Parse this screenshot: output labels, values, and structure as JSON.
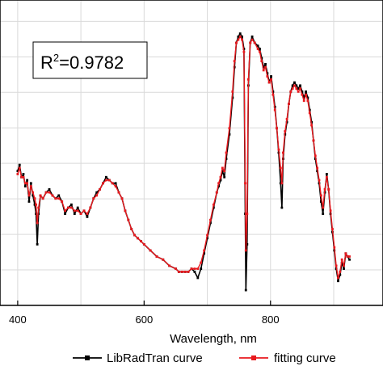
{
  "chart_data": {
    "type": "line",
    "title": "",
    "xlabel": "Wavelength, nm",
    "ylabel": "",
    "xlim": [
      372,
      978
    ],
    "ylim": [
      0,
      1
    ],
    "x_ticks": [
      400,
      600,
      800
    ],
    "grid": true,
    "legend_position": "bottom",
    "annotation": {
      "base": "R",
      "superscript": "2",
      "rest": "=0.9782"
    },
    "series": [
      {
        "name": "LibRadTran curve",
        "color": "#000000",
        "points": [
          [
            400,
            0.44
          ],
          [
            403,
            0.46
          ],
          [
            406,
            0.42
          ],
          [
            409,
            0.43
          ],
          [
            412,
            0.39
          ],
          [
            415,
            0.41
          ],
          [
            418,
            0.34
          ],
          [
            421,
            0.4
          ],
          [
            424,
            0.36
          ],
          [
            427,
            0.33
          ],
          [
            429,
            0.3
          ],
          [
            431,
            0.2
          ],
          [
            433,
            0.3
          ],
          [
            436,
            0.36
          ],
          [
            440,
            0.35
          ],
          [
            445,
            0.37
          ],
          [
            450,
            0.38
          ],
          [
            455,
            0.36
          ],
          [
            460,
            0.35
          ],
          [
            465,
            0.36
          ],
          [
            470,
            0.34
          ],
          [
            475,
            0.3
          ],
          [
            480,
            0.32
          ],
          [
            485,
            0.33
          ],
          [
            490,
            0.3
          ],
          [
            495,
            0.32
          ],
          [
            500,
            0.3
          ],
          [
            505,
            0.31
          ],
          [
            510,
            0.29
          ],
          [
            515,
            0.32
          ],
          [
            520,
            0.35
          ],
          [
            525,
            0.37
          ],
          [
            530,
            0.38
          ],
          [
            535,
            0.4
          ],
          [
            540,
            0.42
          ],
          [
            545,
            0.41
          ],
          [
            550,
            0.4
          ],
          [
            555,
            0.4
          ],
          [
            560,
            0.37
          ],
          [
            565,
            0.35
          ],
          [
            570,
            0.31
          ],
          [
            575,
            0.28
          ],
          [
            580,
            0.25
          ],
          [
            585,
            0.23
          ],
          [
            590,
            0.22
          ],
          [
            595,
            0.21
          ],
          [
            600,
            0.2
          ],
          [
            610,
            0.18
          ],
          [
            620,
            0.16
          ],
          [
            630,
            0.15
          ],
          [
            640,
            0.13
          ],
          [
            650,
            0.12
          ],
          [
            655,
            0.11
          ],
          [
            660,
            0.11
          ],
          [
            665,
            0.11
          ],
          [
            670,
            0.11
          ],
          [
            675,
            0.12
          ],
          [
            680,
            0.11
          ],
          [
            685,
            0.09
          ],
          [
            690,
            0.12
          ],
          [
            695,
            0.17
          ],
          [
            700,
            0.22
          ],
          [
            705,
            0.27
          ],
          [
            710,
            0.32
          ],
          [
            715,
            0.37
          ],
          [
            718,
            0.39
          ],
          [
            721,
            0.41
          ],
          [
            724,
            0.44
          ],
          [
            727,
            0.42
          ],
          [
            730,
            0.48
          ],
          [
            735,
            0.56
          ],
          [
            740,
            0.68
          ],
          [
            743,
            0.78
          ],
          [
            746,
            0.86
          ],
          [
            749,
            0.88
          ],
          [
            752,
            0.89
          ],
          [
            755,
            0.88
          ],
          [
            758,
            0.84
          ],
          [
            760,
            0.3
          ],
          [
            761,
            0.05
          ],
          [
            763,
            0.2
          ],
          [
            765,
            0.72
          ],
          [
            768,
            0.86
          ],
          [
            771,
            0.88
          ],
          [
            775,
            0.86
          ],
          [
            780,
            0.85
          ],
          [
            783,
            0.84
          ],
          [
            786,
            0.81
          ],
          [
            789,
            0.78
          ],
          [
            792,
            0.79
          ],
          [
            795,
            0.76
          ],
          [
            798,
            0.73
          ],
          [
            801,
            0.75
          ],
          [
            804,
            0.7
          ],
          [
            807,
            0.65
          ],
          [
            810,
            0.58
          ],
          [
            813,
            0.5
          ],
          [
            816,
            0.4
          ],
          [
            818,
            0.32
          ],
          [
            820,
            0.48
          ],
          [
            823,
            0.56
          ],
          [
            826,
            0.6
          ],
          [
            829,
            0.66
          ],
          [
            832,
            0.7
          ],
          [
            835,
            0.72
          ],
          [
            838,
            0.73
          ],
          [
            841,
            0.72
          ],
          [
            844,
            0.71
          ],
          [
            847,
            0.72
          ],
          [
            850,
            0.7
          ],
          [
            853,
            0.68
          ],
          [
            856,
            0.7
          ],
          [
            859,
            0.68
          ],
          [
            862,
            0.64
          ],
          [
            865,
            0.6
          ],
          [
            868,
            0.54
          ],
          [
            871,
            0.48
          ],
          [
            874,
            0.44
          ],
          [
            877,
            0.4
          ],
          [
            880,
            0.34
          ],
          [
            883,
            0.3
          ],
          [
            886,
            0.37
          ],
          [
            889,
            0.43
          ],
          [
            892,
            0.38
          ],
          [
            895,
            0.3
          ],
          [
            898,
            0.24
          ],
          [
            901,
            0.18
          ],
          [
            904,
            0.12
          ],
          [
            907,
            0.08
          ],
          [
            910,
            0.1
          ],
          [
            913,
            0.14
          ],
          [
            916,
            0.12
          ],
          [
            919,
            0.17
          ],
          [
            922,
            0.16
          ],
          [
            925,
            0.15
          ]
        ]
      },
      {
        "name": "fitting curve",
        "color": "#e8191e",
        "points": [
          [
            400,
            0.43
          ],
          [
            403,
            0.45
          ],
          [
            406,
            0.42
          ],
          [
            409,
            0.42
          ],
          [
            412,
            0.4
          ],
          [
            415,
            0.4
          ],
          [
            418,
            0.36
          ],
          [
            421,
            0.39
          ],
          [
            424,
            0.37
          ],
          [
            427,
            0.35
          ],
          [
            429,
            0.33
          ],
          [
            431,
            0.27
          ],
          [
            433,
            0.32
          ],
          [
            436,
            0.36
          ],
          [
            440,
            0.35
          ],
          [
            445,
            0.37
          ],
          [
            450,
            0.37
          ],
          [
            455,
            0.36
          ],
          [
            460,
            0.35
          ],
          [
            465,
            0.35
          ],
          [
            470,
            0.34
          ],
          [
            475,
            0.31
          ],
          [
            480,
            0.32
          ],
          [
            485,
            0.32
          ],
          [
            490,
            0.31
          ],
          [
            495,
            0.31
          ],
          [
            500,
            0.3
          ],
          [
            505,
            0.31
          ],
          [
            510,
            0.3
          ],
          [
            515,
            0.32
          ],
          [
            520,
            0.35
          ],
          [
            525,
            0.36
          ],
          [
            530,
            0.38
          ],
          [
            535,
            0.4
          ],
          [
            540,
            0.41
          ],
          [
            545,
            0.41
          ],
          [
            550,
            0.4
          ],
          [
            555,
            0.39
          ],
          [
            560,
            0.37
          ],
          [
            565,
            0.35
          ],
          [
            570,
            0.31
          ],
          [
            575,
            0.28
          ],
          [
            580,
            0.25
          ],
          [
            585,
            0.23
          ],
          [
            590,
            0.22
          ],
          [
            595,
            0.21
          ],
          [
            600,
            0.2
          ],
          [
            610,
            0.18
          ],
          [
            620,
            0.16
          ],
          [
            630,
            0.15
          ],
          [
            640,
            0.13
          ],
          [
            650,
            0.12
          ],
          [
            655,
            0.11
          ],
          [
            660,
            0.11
          ],
          [
            665,
            0.11
          ],
          [
            670,
            0.11
          ],
          [
            675,
            0.12
          ],
          [
            680,
            0.12
          ],
          [
            685,
            0.12
          ],
          [
            690,
            0.14
          ],
          [
            695,
            0.18
          ],
          [
            700,
            0.23
          ],
          [
            705,
            0.28
          ],
          [
            710,
            0.33
          ],
          [
            715,
            0.37
          ],
          [
            718,
            0.4
          ],
          [
            721,
            0.42
          ],
          [
            724,
            0.45
          ],
          [
            727,
            0.44
          ],
          [
            730,
            0.5
          ],
          [
            735,
            0.58
          ],
          [
            740,
            0.7
          ],
          [
            743,
            0.8
          ],
          [
            746,
            0.86
          ],
          [
            749,
            0.87
          ],
          [
            752,
            0.88
          ],
          [
            755,
            0.87
          ],
          [
            758,
            0.83
          ],
          [
            760,
            0.4
          ],
          [
            761,
            0.18
          ],
          [
            763,
            0.3
          ],
          [
            765,
            0.74
          ],
          [
            768,
            0.86
          ],
          [
            771,
            0.87
          ],
          [
            775,
            0.86
          ],
          [
            780,
            0.84
          ],
          [
            783,
            0.83
          ],
          [
            786,
            0.8
          ],
          [
            789,
            0.77
          ],
          [
            792,
            0.78
          ],
          [
            795,
            0.75
          ],
          [
            798,
            0.73
          ],
          [
            801,
            0.74
          ],
          [
            804,
            0.69
          ],
          [
            807,
            0.64
          ],
          [
            810,
            0.58
          ],
          [
            813,
            0.51
          ],
          [
            816,
            0.45
          ],
          [
            818,
            0.4
          ],
          [
            820,
            0.5
          ],
          [
            823,
            0.57
          ],
          [
            826,
            0.61
          ],
          [
            829,
            0.66
          ],
          [
            832,
            0.7
          ],
          [
            835,
            0.71
          ],
          [
            838,
            0.72
          ],
          [
            841,
            0.71
          ],
          [
            844,
            0.7
          ],
          [
            847,
            0.71
          ],
          [
            850,
            0.69
          ],
          [
            853,
            0.67
          ],
          [
            856,
            0.69
          ],
          [
            859,
            0.67
          ],
          [
            862,
            0.63
          ],
          [
            865,
            0.59
          ],
          [
            868,
            0.54
          ],
          [
            871,
            0.49
          ],
          [
            874,
            0.45
          ],
          [
            877,
            0.41
          ],
          [
            880,
            0.36
          ],
          [
            883,
            0.32
          ],
          [
            886,
            0.38
          ],
          [
            889,
            0.42
          ],
          [
            892,
            0.38
          ],
          [
            895,
            0.31
          ],
          [
            898,
            0.25
          ],
          [
            901,
            0.19
          ],
          [
            904,
            0.13
          ],
          [
            907,
            0.09
          ],
          [
            910,
            0.11
          ],
          [
            913,
            0.15
          ],
          [
            916,
            0.13
          ],
          [
            919,
            0.17
          ],
          [
            922,
            0.16
          ],
          [
            925,
            0.16
          ]
        ]
      }
    ]
  }
}
